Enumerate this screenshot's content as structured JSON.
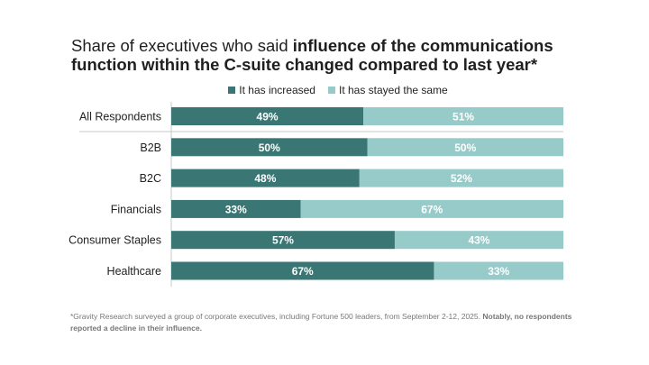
{
  "title": {
    "prefix": "Share of executives who said ",
    "bold": "influence of the communications function within the C-suite changed compared to last year*"
  },
  "colors": {
    "increased": "#3a7774",
    "same": "#97cbca",
    "label_text": "#ffffff",
    "gridline": "#c8c8c8"
  },
  "chart_data": {
    "type": "bar",
    "orientation": "horizontal",
    "stacked": "100%",
    "categories": [
      "All Respondents",
      "B2B",
      "B2C",
      "Financials",
      "Consumer Staples",
      "Healthcare"
    ],
    "series": [
      {
        "name": "It has increased",
        "values": [
          49,
          50,
          48,
          33,
          57,
          67
        ],
        "labels": [
          "49%",
          "50%",
          "48%",
          "33%",
          "57%",
          "67%"
        ]
      },
      {
        "name": "It has stayed the same",
        "values": [
          51,
          50,
          52,
          67,
          43,
          33
        ],
        "labels": [
          "51%",
          "50%",
          "52%",
          "67%",
          "43%",
          "33%"
        ]
      }
    ],
    "xlim": [
      0,
      100
    ],
    "legend_position": "top-center",
    "separator_after": "All Respondents"
  },
  "footnote": {
    "text": "*Gravity Research surveyed a group of corporate executives, including Fortune 500 leaders, from September 2-12, 2025. ",
    "bold": "Notably, no respondents reported a decline in their influence."
  }
}
